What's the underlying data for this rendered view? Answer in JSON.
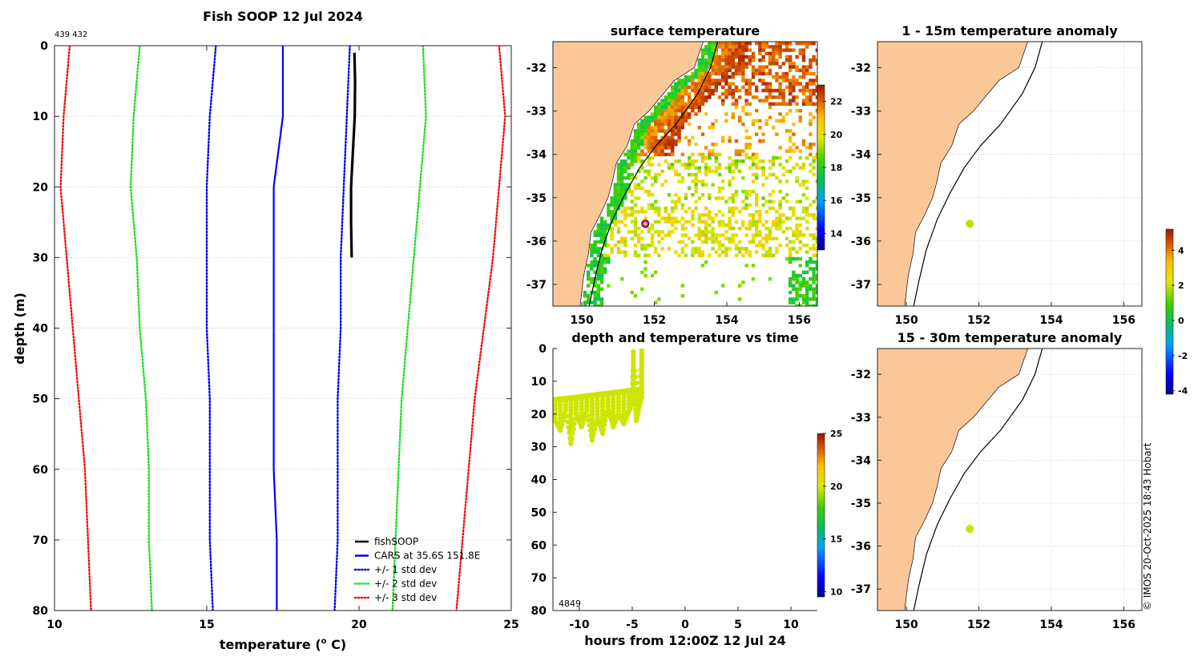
{
  "chart_data": [
    {
      "type": "line",
      "id": "profile",
      "title": "Fish SOOP 12 Jul 2024",
      "annotation": "439 432",
      "xlabel": "temperature (",
      "xlabel_sup": "o",
      "xlabel_end": " C)",
      "ylabel": "depth (m)",
      "xlim": [
        10,
        25
      ],
      "ylim": [
        80,
        0
      ],
      "xticks": [
        "10",
        "15",
        "20",
        "25"
      ],
      "yticks": [
        "0",
        "10",
        "20",
        "30",
        "40",
        "50",
        "60",
        "70",
        "80"
      ],
      "legend_position": "bottom-right",
      "series": [
        {
          "name": "fishSOOP",
          "color": "#000000",
          "style": "solid",
          "depth": [
            1,
            5,
            10,
            15,
            20,
            25,
            30
          ],
          "temp": [
            19.85,
            19.87,
            19.86,
            19.8,
            19.74,
            19.74,
            19.76
          ]
        },
        {
          "name": "CARS at 35.6S 151.8E",
          "color": "#0000ee",
          "style": "solid",
          "depth": [
            0,
            10,
            20,
            30,
            40,
            50,
            60,
            70,
            80
          ],
          "temp": [
            17.5,
            17.5,
            17.2,
            17.2,
            17.2,
            17.2,
            17.2,
            17.3,
            17.3
          ]
        },
        {
          "name": "+/- 1 std dev",
          "color": "#0000ee",
          "style": "dotted",
          "depth": [
            0,
            10,
            20,
            30,
            40,
            50,
            60,
            70,
            80
          ],
          "lower": [
            15.3,
            15.1,
            15.0,
            15.0,
            15.0,
            15.1,
            15.1,
            15.1,
            15.2
          ],
          "upper": [
            19.7,
            19.6,
            19.5,
            19.4,
            19.4,
            19.3,
            19.3,
            19.3,
            19.2
          ]
        },
        {
          "name": "+/- 2 std dev",
          "color": "#22dd22",
          "style": "dotted",
          "depth": [
            0,
            10,
            20,
            30,
            40,
            50,
            60,
            70,
            80
          ],
          "lower": [
            12.8,
            12.6,
            12.5,
            12.7,
            12.8,
            13.0,
            13.1,
            13.1,
            13.2
          ],
          "upper": [
            22.1,
            22.2,
            22.0,
            21.8,
            21.6,
            21.4,
            21.3,
            21.2,
            21.1
          ]
        },
        {
          "name": "+/- 3 std dev",
          "color": "#ee1111",
          "style": "dotted",
          "depth": [
            0,
            10,
            20,
            30,
            40,
            50,
            60,
            70,
            80
          ],
          "lower": [
            10.5,
            10.3,
            10.2,
            10.4,
            10.6,
            10.8,
            11.0,
            11.1,
            11.2
          ],
          "upper": [
            24.6,
            24.8,
            24.6,
            24.4,
            24.1,
            23.8,
            23.6,
            23.4,
            23.2
          ]
        }
      ]
    },
    {
      "type": "heatmap",
      "id": "sst",
      "title": "surface temperature",
      "xlim": [
        149.2,
        156.5
      ],
      "ylim": [
        -37.5,
        -31.4
      ],
      "xticks": [
        "150",
        "152",
        "154",
        "156"
      ],
      "yticks": [
        "-32",
        "-33",
        "-34",
        "-35",
        "-36",
        "-37"
      ],
      "colorbar": {
        "min": 13,
        "max": 23,
        "ticks": [
          "14",
          "16",
          "18",
          "20",
          "22"
        ]
      },
      "marker": {
        "lon": 151.75,
        "lat": -35.6
      }
    },
    {
      "type": "scatter",
      "id": "time_series",
      "title": "depth and temperature vs time",
      "xlabel": "hours from 12:00Z 12 Jul 24",
      "annotation": "4849",
      "xlim": [
        -12.5,
        12.5
      ],
      "ylim": [
        80,
        0
      ],
      "xticks": [
        "-10",
        "-5",
        "0",
        "5",
        "10"
      ],
      "yticks": [
        "0",
        "10",
        "20",
        "30",
        "40",
        "50",
        "60",
        "70",
        "80"
      ],
      "colorbar": {
        "min": 9.5,
        "max": 25,
        "ticks": [
          "10",
          "15",
          "20",
          "25"
        ]
      },
      "points": {
        "hours": [
          -12.3,
          -11.8,
          -11.3,
          -10.8,
          -10.3,
          -9.8,
          -9.3,
          -8.8,
          -8.3,
          -7.8,
          -7.3,
          -6.8,
          -6.3,
          -5.8,
          -5.3,
          -5.0,
          -4.9,
          -4.6,
          -4.3,
          -4.1
        ],
        "depth_upper": [
          15.5,
          15.3,
          15.2,
          15.0,
          14.8,
          14.6,
          14.4,
          14.2,
          14.0,
          13.8,
          13.6,
          13.4,
          13.2,
          13.0,
          12.8,
          12.6,
          1.0,
          12.5,
          12.4,
          0.5
        ],
        "depth_lower": [
          22,
          25,
          19,
          29,
          20,
          24,
          19,
          28,
          21,
          26,
          18,
          24,
          20,
          23,
          19,
          17,
          12,
          22,
          17,
          15
        ]
      },
      "point_temp": 19.8
    },
    {
      "type": "scatter",
      "id": "anom1",
      "title": "1 - 15m temperature anomaly",
      "xlim": [
        149.2,
        156.5
      ],
      "ylim": [
        -37.5,
        -31.4
      ],
      "xticks": [
        "150",
        "152",
        "154",
        "156"
      ],
      "yticks": [
        "-32",
        "-33",
        "-34",
        "-35",
        "-36",
        "-37"
      ],
      "marker": {
        "lon": 151.75,
        "lat": -35.6,
        "value": 1.9
      }
    },
    {
      "type": "scatter",
      "id": "anom2",
      "title": "15 - 30m temperature anomaly",
      "xlim": [
        149.2,
        156.5
      ],
      "ylim": [
        -37.5,
        -31.4
      ],
      "xticks": [
        "150",
        "152",
        "154",
        "156"
      ],
      "yticks": [
        "-32",
        "-33",
        "-34",
        "-35",
        "-36",
        "-37"
      ],
      "marker": {
        "lon": 151.75,
        "lat": -35.6,
        "value": 2.0
      },
      "colorbar": {
        "min": -4.2,
        "max": 5.2,
        "ticks": [
          "4",
          "2",
          "0",
          "-2",
          "-4"
        ]
      }
    }
  ],
  "credit": "© IMOS 20-Oct-2025 18:43 Hobart",
  "colors": {
    "land": "#fac898",
    "grid": "#b8b8b8",
    "fishSOOP": "#000000",
    "cars": "#0000ee"
  }
}
